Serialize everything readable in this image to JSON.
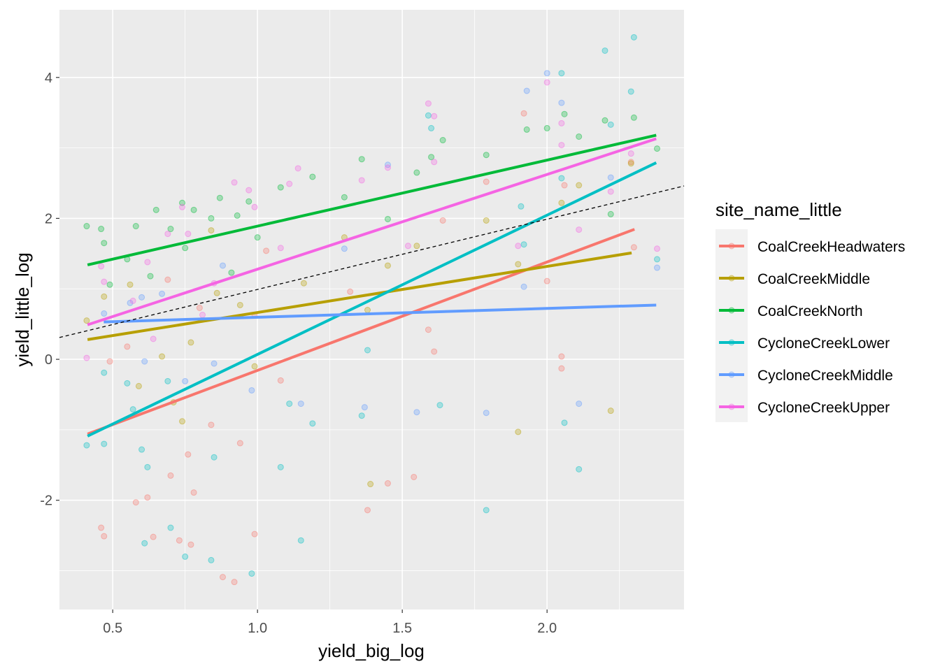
{
  "chart_data": {
    "type": "scatter",
    "title": "",
    "xlabel": "yield_big_log",
    "ylabel": "yield_little_log",
    "xlim": [
      0.316,
      2.473
    ],
    "ylim": [
      -3.55,
      4.96
    ],
    "xticks": [
      0.5,
      1.0,
      1.5,
      2.0
    ],
    "xtick_labels": [
      "0.5",
      "1.0",
      "1.5",
      "2.0"
    ],
    "yticks": [
      -2,
      0,
      2,
      4
    ],
    "ytick_labels": [
      "-2",
      "0",
      "2",
      "4"
    ],
    "grid": true,
    "legend": {
      "title": "site_name_little",
      "placement": "right"
    },
    "reference_line": {
      "style": "dashed",
      "color": "#000000",
      "x": [
        0.316,
        2.473
      ],
      "y": [
        0.31,
        2.46
      ]
    },
    "series": [
      {
        "name": "CoalCreekHeadwaters",
        "color": "#F8766D",
        "fit": {
          "x": [
            0.413,
            2.302
          ],
          "y": [
            -1.06,
            1.845
          ]
        },
        "points": [
          [
            0.46,
            -2.39
          ],
          [
            0.47,
            -2.51
          ],
          [
            0.58,
            -2.03
          ],
          [
            0.62,
            -1.96
          ],
          [
            0.64,
            -2.52
          ],
          [
            0.7,
            -1.65
          ],
          [
            0.73,
            -2.57
          ],
          [
            0.77,
            -2.63
          ],
          [
            0.78,
            -1.89
          ],
          [
            0.88,
            -3.09
          ],
          [
            0.92,
            -3.16
          ],
          [
            0.99,
            -2.48
          ],
          [
            0.94,
            -1.19
          ],
          [
            0.76,
            -1.35
          ],
          [
            0.84,
            -0.93
          ],
          [
            1.08,
            -0.3
          ],
          [
            1.32,
            0.96
          ],
          [
            1.38,
            -2.14
          ],
          [
            1.45,
            -1.76
          ],
          [
            1.54,
            -1.67
          ],
          [
            1.59,
            0.42
          ],
          [
            1.61,
            0.11
          ],
          [
            1.64,
            1.97
          ],
          [
            1.79,
            2.52
          ],
          [
            1.92,
            3.49
          ],
          [
            2.0,
            1.11
          ],
          [
            2.05,
            0.04
          ],
          [
            2.05,
            -0.13
          ],
          [
            2.06,
            2.47
          ],
          [
            2.29,
            2.8
          ],
          [
            2.3,
            1.59
          ],
          [
            1.03,
            1.54
          ],
          [
            0.69,
            1.13
          ],
          [
            0.55,
            0.18
          ],
          [
            0.8,
            0.73
          ],
          [
            0.99,
            0.63
          ],
          [
            0.49,
            -0.03
          ]
        ]
      },
      {
        "name": "CoalCreekMiddle",
        "color": "#B79F00",
        "fit": {
          "x": [
            0.413,
            2.292
          ],
          "y": [
            0.28,
            1.51
          ]
        },
        "points": [
          [
            0.41,
            0.55
          ],
          [
            0.47,
            0.89
          ],
          [
            0.56,
            1.06
          ],
          [
            0.59,
            -0.38
          ],
          [
            0.71,
            -0.61
          ],
          [
            0.74,
            -0.88
          ],
          [
            0.77,
            0.24
          ],
          [
            0.86,
            0.94
          ],
          [
            0.94,
            0.77
          ],
          [
            0.99,
            -0.1
          ],
          [
            1.16,
            1.08
          ],
          [
            1.3,
            1.73
          ],
          [
            1.38,
            0.7
          ],
          [
            1.39,
            -1.77
          ],
          [
            1.45,
            1.33
          ],
          [
            1.55,
            1.61
          ],
          [
            1.79,
            1.97
          ],
          [
            1.9,
            -1.03
          ],
          [
            1.9,
            1.35
          ],
          [
            2.05,
            2.22
          ],
          [
            2.11,
            2.47
          ],
          [
            2.22,
            -0.73
          ],
          [
            2.29,
            2.78
          ],
          [
            0.67,
            0.04
          ],
          [
            0.84,
            1.83
          ]
        ]
      },
      {
        "name": "CoalCreekNorth",
        "color": "#00BA38",
        "fit": {
          "x": [
            0.413,
            2.377
          ],
          "y": [
            1.34,
            3.18
          ]
        },
        "points": [
          [
            0.41,
            1.89
          ],
          [
            0.46,
            1.85
          ],
          [
            0.47,
            1.65
          ],
          [
            0.49,
            1.06
          ],
          [
            0.55,
            1.42
          ],
          [
            0.58,
            1.89
          ],
          [
            0.65,
            2.12
          ],
          [
            0.7,
            1.85
          ],
          [
            0.74,
            2.22
          ],
          [
            0.78,
            2.12
          ],
          [
            0.84,
            2.0
          ],
          [
            0.87,
            2.29
          ],
          [
            0.93,
            2.04
          ],
          [
            0.97,
            2.24
          ],
          [
            1.08,
            2.44
          ],
          [
            1.19,
            2.59
          ],
          [
            1.3,
            2.3
          ],
          [
            1.36,
            2.84
          ],
          [
            1.45,
            1.99
          ],
          [
            1.55,
            2.65
          ],
          [
            1.6,
            2.87
          ],
          [
            1.64,
            3.11
          ],
          [
            1.79,
            2.9
          ],
          [
            1.93,
            3.26
          ],
          [
            2.0,
            3.28
          ],
          [
            2.06,
            3.48
          ],
          [
            2.11,
            3.16
          ],
          [
            2.2,
            3.39
          ],
          [
            2.3,
            3.43
          ],
          [
            2.38,
            2.99
          ],
          [
            2.22,
            2.06
          ],
          [
            0.63,
            1.18
          ],
          [
            0.75,
            1.58
          ],
          [
            0.91,
            1.23
          ],
          [
            1.0,
            1.73
          ]
        ]
      },
      {
        "name": "CycloneCreekLower",
        "color": "#00BFC4",
        "fit": {
          "x": [
            0.413,
            2.377
          ],
          "y": [
            -1.09,
            2.79
          ]
        },
        "points": [
          [
            0.41,
            -1.22
          ],
          [
            0.47,
            -1.2
          ],
          [
            0.47,
            -0.19
          ],
          [
            0.57,
            -0.71
          ],
          [
            0.6,
            -1.28
          ],
          [
            0.62,
            -1.53
          ],
          [
            0.61,
            -2.61
          ],
          [
            0.7,
            -2.39
          ],
          [
            0.75,
            -2.8
          ],
          [
            0.84,
            -2.85
          ],
          [
            0.85,
            -1.39
          ],
          [
            0.98,
            -3.04
          ],
          [
            1.08,
            -1.53
          ],
          [
            1.11,
            -0.63
          ],
          [
            1.15,
            -2.57
          ],
          [
            1.19,
            -0.91
          ],
          [
            1.36,
            -0.8
          ],
          [
            1.38,
            0.13
          ],
          [
            1.6,
            3.28
          ],
          [
            1.59,
            3.46
          ],
          [
            1.63,
            -0.65
          ],
          [
            1.79,
            -2.14
          ],
          [
            1.91,
            2.17
          ],
          [
            1.92,
            1.63
          ],
          [
            2.06,
            -0.9
          ],
          [
            2.11,
            -1.56
          ],
          [
            2.2,
            4.38
          ],
          [
            2.22,
            3.33
          ],
          [
            2.3,
            4.57
          ],
          [
            2.29,
            3.8
          ],
          [
            2.38,
            1.42
          ],
          [
            2.05,
            4.06
          ],
          [
            2.05,
            2.57
          ],
          [
            0.55,
            -0.34
          ],
          [
            0.69,
            -0.31
          ]
        ]
      },
      {
        "name": "CycloneCreekMiddle",
        "color": "#619CFF",
        "fit": {
          "x": [
            0.469,
            2.377
          ],
          "y": [
            0.53,
            0.77
          ]
        },
        "points": [
          [
            0.47,
            0.65
          ],
          [
            0.56,
            0.8
          ],
          [
            0.6,
            0.88
          ],
          [
            0.61,
            -0.03
          ],
          [
            0.75,
            -0.31
          ],
          [
            0.85,
            -0.06
          ],
          [
            0.88,
            1.33
          ],
          [
            0.98,
            -0.44
          ],
          [
            1.15,
            -0.63
          ],
          [
            1.3,
            1.57
          ],
          [
            1.37,
            -0.68
          ],
          [
            1.45,
            2.76
          ],
          [
            1.55,
            -0.75
          ],
          [
            1.79,
            -0.76
          ],
          [
            1.92,
            1.03
          ],
          [
            1.93,
            3.81
          ],
          [
            2.0,
            4.06
          ],
          [
            2.05,
            3.64
          ],
          [
            2.11,
            -0.63
          ],
          [
            2.22,
            2.58
          ],
          [
            2.38,
            1.3
          ],
          [
            0.67,
            0.93
          ]
        ]
      },
      {
        "name": "CycloneCreekUpper",
        "color": "#F564E3",
        "fit": {
          "x": [
            0.413,
            2.377
          ],
          "y": [
            0.49,
            3.13
          ]
        },
        "points": [
          [
            0.41,
            0.02
          ],
          [
            0.46,
            1.32
          ],
          [
            0.47,
            1.1
          ],
          [
            0.57,
            0.83
          ],
          [
            0.62,
            1.38
          ],
          [
            0.69,
            1.78
          ],
          [
            0.74,
            2.16
          ],
          [
            0.76,
            1.78
          ],
          [
            0.85,
            1.08
          ],
          [
            0.92,
            2.51
          ],
          [
            0.97,
            2.4
          ],
          [
            0.99,
            2.16
          ],
          [
            1.08,
            1.58
          ],
          [
            1.11,
            2.49
          ],
          [
            1.14,
            2.71
          ],
          [
            1.36,
            2.54
          ],
          [
            1.45,
            2.72
          ],
          [
            1.52,
            1.61
          ],
          [
            1.59,
            3.63
          ],
          [
            1.61,
            3.45
          ],
          [
            1.61,
            2.8
          ],
          [
            1.9,
            1.61
          ],
          [
            2.0,
            3.93
          ],
          [
            2.05,
            3.35
          ],
          [
            2.05,
            3.04
          ],
          [
            2.11,
            1.84
          ],
          [
            2.22,
            2.38
          ],
          [
            2.29,
            2.92
          ],
          [
            2.38,
            1.57
          ],
          [
            0.64,
            0.29
          ],
          [
            0.81,
            0.63
          ]
        ]
      }
    ]
  }
}
